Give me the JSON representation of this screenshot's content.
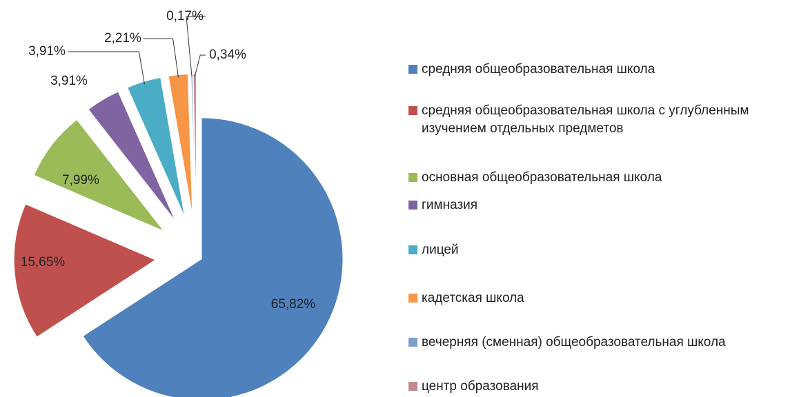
{
  "chart_data": {
    "type": "pie",
    "categories": [
      "средняя общеобразовательная школа",
      "средняя общеобразовательная школа с углубленным изучением отдельных предметов",
      "основная общеобразовательная школа",
      "гимназия",
      "лицей",
      "кадетская школа",
      "вечерняя (сменная) общеобразовательная школа",
      "центр образования"
    ],
    "values": [
      65.82,
      15.65,
      7.99,
      3.91,
      3.91,
      2.21,
      0.17,
      0.34
    ],
    "value_labels": [
      "65,82%",
      "15,65%",
      "7,99%",
      "3,91%",
      "3,91%",
      "2,21%",
      "0,17%",
      "0,34%"
    ],
    "colors": [
      "#4f81bd",
      "#c0504d",
      "#9bbb59",
      "#8064a2",
      "#4bacc6",
      "#f79646",
      "#7f9fc8",
      "#c28a8c"
    ],
    "legend": "right"
  }
}
